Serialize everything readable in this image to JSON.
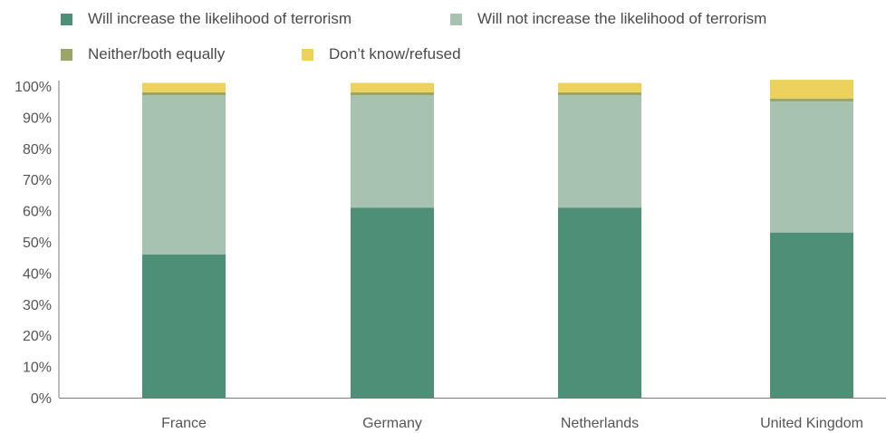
{
  "legend": {
    "items": [
      {
        "label": "Will increase the likelihood of terrorism",
        "color": "#4e8f78"
      },
      {
        "label": "Will not increase the likelihood of terrorism",
        "color": "#a8c2b2"
      },
      {
        "label": "Neither/both equally",
        "color": "#9aa568"
      },
      {
        "label": "Don’t know/refused",
        "color": "#ecd25c"
      }
    ]
  },
  "chart_data": {
    "type": "bar",
    "stacked": true,
    "categories": [
      "France",
      "Germany",
      "Netherlands",
      "United Kingdom"
    ],
    "series": [
      {
        "name": "Will increase the likelihood of terrorism",
        "color": "#4e8f78",
        "values": [
          46,
          61,
          61,
          53
        ]
      },
      {
        "name": "Will not increase the likelihood of terrorism",
        "color": "#a8c2b2",
        "values": [
          51,
          36,
          36,
          42
        ]
      },
      {
        "name": "Neither/both equally",
        "color": "#9aa568",
        "values": [
          1,
          1,
          1,
          1
        ]
      },
      {
        "name": "Don’t know/refused",
        "color": "#ecd25c",
        "values": [
          3,
          3,
          3,
          6
        ]
      }
    ],
    "yticks": [
      "0%",
      "10%",
      "20%",
      "30%",
      "40%",
      "50%",
      "60%",
      "70%",
      "80%",
      "90%",
      "100%"
    ],
    "ylim": [
      0,
      100
    ],
    "legend_position": "top",
    "grid": false
  }
}
